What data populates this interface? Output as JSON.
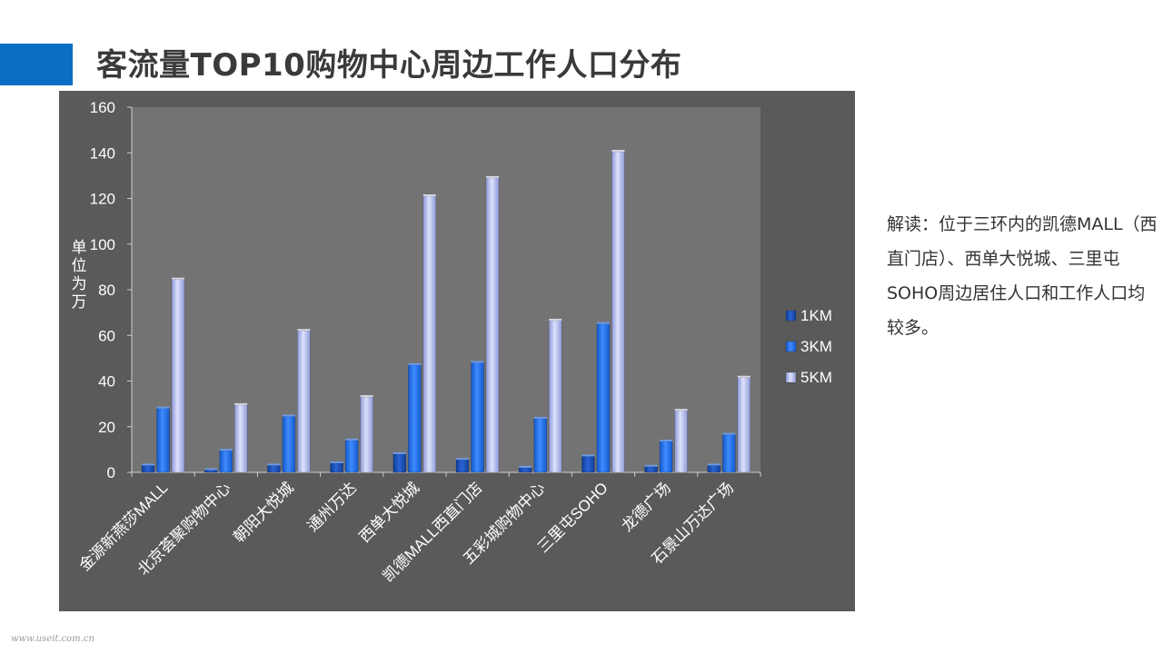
{
  "page": {
    "title": "客流量TOP10购物中心周边工作人口分布",
    "commentary": "解读：位于三环内的凯德MALL（西直门店）、西单大悦城、三里屯SOHO周边居住人口和工作人口均较多。",
    "watermark": "www.useit.com.cn",
    "accent_color": "#0a6fc2"
  },
  "chart_data": {
    "type": "bar",
    "title": "",
    "xlabel": "",
    "ylabel": "单位为万",
    "ylim": [
      0,
      160
    ],
    "yticks": [
      0,
      20,
      40,
      60,
      80,
      100,
      120,
      140,
      160
    ],
    "grid": false,
    "legend_position": "right",
    "categories": [
      "金源新燕莎MALL",
      "北京荟聚购物中心",
      "朝阳大悦城",
      "通州万达",
      "西单大悦城",
      "凯德MALL西直门店",
      "五彩城购物中心",
      "三里屯SOHO",
      "龙德广场",
      "石景山万达广场"
    ],
    "series": [
      {
        "name": "1KM",
        "color": "#1a4fb8",
        "values": [
          3,
          1,
          3,
          4,
          8,
          5.5,
          2,
          7,
          2.5,
          3
        ]
      },
      {
        "name": "3KM",
        "color": "#1f6fe6",
        "values": [
          28,
          9.5,
          24.5,
          14,
          47,
          48,
          23.5,
          65,
          13.5,
          16.5
        ]
      },
      {
        "name": "5KM",
        "color": "#a9b4e8",
        "values": [
          84.5,
          29.5,
          62,
          33,
          121,
          129,
          66.5,
          140.5,
          27,
          41.5
        ]
      }
    ]
  }
}
